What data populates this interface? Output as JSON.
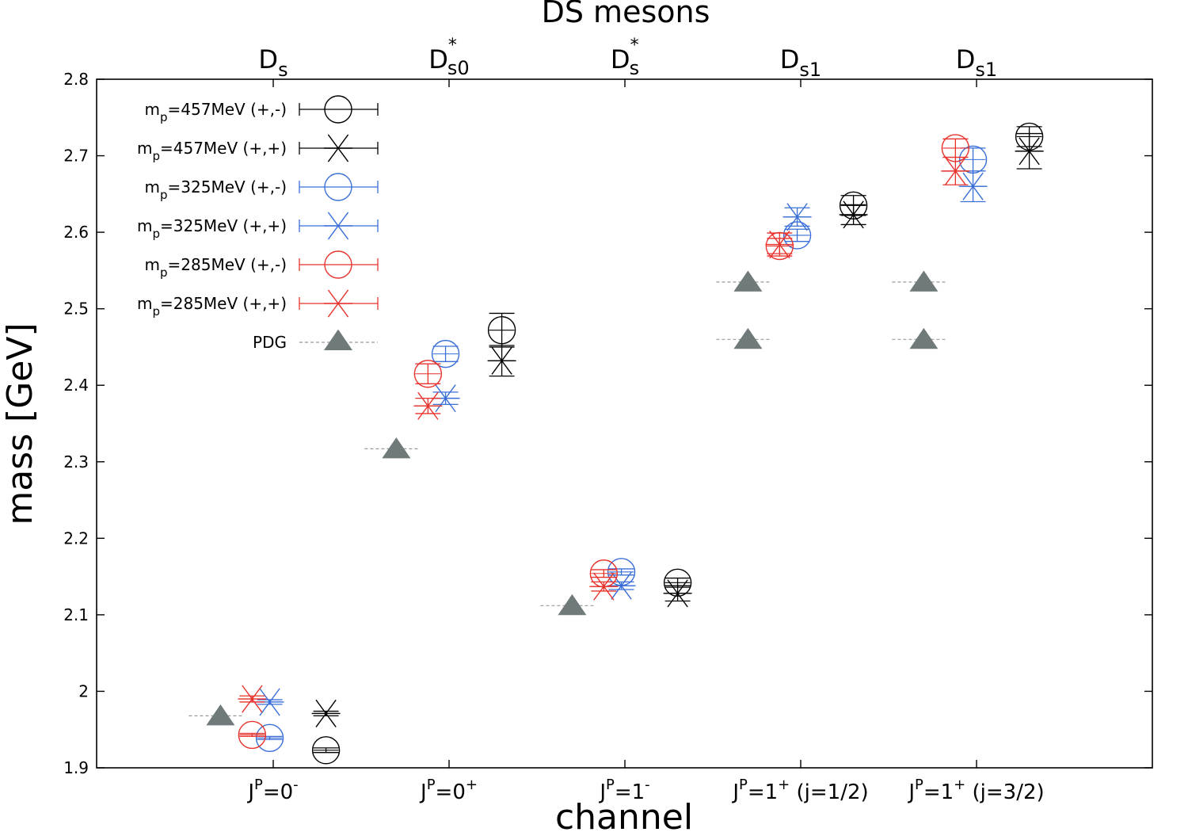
{
  "chart_data": {
    "type": "scatter",
    "title": "DS mesons",
    "xlabel": "channel",
    "ylabel": "mass [GeV]",
    "ylim": [
      1.9,
      2.8
    ],
    "yticks": [
      "1.9",
      "2",
      "2.1",
      "2.2",
      "2.3",
      "2.4",
      "2.5",
      "2.6",
      "2.7",
      "2.8"
    ],
    "grid": false,
    "legend_position": "top-left",
    "categories": [
      {
        "top": "D",
        "top_sub": "s",
        "top_sup": "",
        "bottom_pre": "J",
        "bottom_sup": "P",
        "bottom_mid": "=0",
        "bottom_sup2": "-",
        "bottom_post": ""
      },
      {
        "top": "D",
        "top_sub": "s0",
        "top_sup": "*",
        "bottom_pre": "J",
        "bottom_sup": "P",
        "bottom_mid": "=0",
        "bottom_sup2": "+",
        "bottom_post": ""
      },
      {
        "top": "D",
        "top_sub": "s",
        "top_sup": "*",
        "bottom_pre": "J",
        "bottom_sup": "P",
        "bottom_mid": "=1",
        "bottom_sup2": "-",
        "bottom_post": ""
      },
      {
        "top": "D",
        "top_sub": "s1",
        "top_sup": "",
        "bottom_pre": "J",
        "bottom_sup": "P",
        "bottom_mid": "=1",
        "bottom_sup2": "+",
        "bottom_post": " (j=1/2)"
      },
      {
        "top": "D",
        "top_sub": "s1",
        "top_sup": "",
        "bottom_pre": "J",
        "bottom_sup": "P",
        "bottom_mid": "=1",
        "bottom_sup2": "+",
        "bottom_post": " (j=3/2)"
      }
    ],
    "series": [
      {
        "name_main": "m",
        "name_sub": "p",
        "name_rest": "=457MeV  (+,-)",
        "color": "#000000",
        "marker": "circle",
        "offset": 0.3,
        "values": [
          1.923,
          2.472,
          2.142,
          2.635,
          2.725
        ],
        "errors": [
          0.003,
          0.022,
          0.006,
          0.013,
          0.013
        ]
      },
      {
        "name_main": "m",
        "name_sub": "p",
        "name_rest": "=457MeV  (+,+)",
        "color": "#000000",
        "marker": "star",
        "offset": 0.3,
        "values": [
          1.971,
          2.432,
          2.128,
          2.623,
          2.706
        ],
        "errors": [
          0.003,
          0.02,
          0.01,
          0.013,
          0.023
        ]
      },
      {
        "name_main": "m",
        "name_sub": "p",
        "name_rest": "=325MeV  (+,-)",
        "color": "#3a6fd8",
        "marker": "circle",
        "offset": -0.02,
        "values": [
          1.939,
          2.441,
          2.156,
          2.596,
          2.695
        ],
        "errors": [
          0.002,
          0.01,
          0.004,
          0.008,
          0.015
        ]
      },
      {
        "name_main": "m",
        "name_sub": "p",
        "name_rest": "=325MeV  (+,+)",
        "color": "#3a6fd8",
        "marker": "star",
        "offset": -0.02,
        "values": [
          1.986,
          2.383,
          2.138,
          2.62,
          2.66
        ],
        "errors": [
          0.003,
          0.008,
          0.005,
          0.012,
          0.02
        ]
      },
      {
        "name_main": "m",
        "name_sub": "p",
        "name_rest": "=285MeV  (+,-)",
        "color": "#e8322c",
        "marker": "circle",
        "offset": -0.12,
        "values": [
          1.943,
          2.415,
          2.154,
          2.582,
          2.71
        ],
        "errors": [
          0.002,
          0.013,
          0.005,
          0.01,
          0.012
        ]
      },
      {
        "name_main": "m",
        "name_sub": "p",
        "name_rest": "=285MeV  (+,+)",
        "color": "#e8322c",
        "marker": "star",
        "offset": -0.12,
        "values": [
          1.99,
          2.373,
          2.137,
          2.584,
          2.68
        ],
        "errors": [
          0.004,
          0.01,
          0.006,
          0.015,
          0.018
        ]
      },
      {
        "name_main": "PDG",
        "name_sub": "",
        "name_rest": "",
        "color": "#707a7a",
        "marker": "triangle",
        "offset": -0.3,
        "values": [
          1.968,
          2.317,
          2.112,
          [
            2.46,
            2.535
          ],
          [
            2.46,
            2.535
          ]
        ],
        "errors": [
          0,
          0,
          0,
          0,
          0
        ]
      }
    ]
  }
}
